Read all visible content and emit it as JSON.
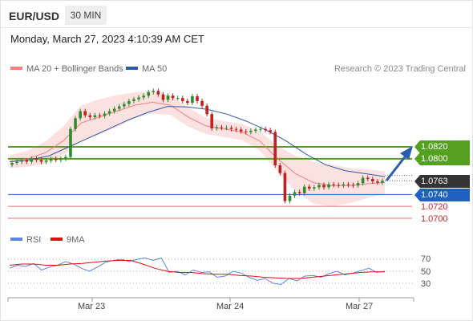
{
  "header": {
    "pair": "EUR/USD",
    "timeframe": "30 MIN",
    "datetime": "Monday, March 27, 2023 4:10:39 AM CET"
  },
  "legend_main": [
    {
      "label": "MA 20 + Bollinger Bands",
      "color": "#f08080"
    },
    {
      "label": "MA 50",
      "color": "#2b5ba8"
    }
  ],
  "copyright": "Research © 2023 Trading Central",
  "legend_rsi": [
    {
      "label": "RSI",
      "color": "#5b86e5"
    },
    {
      "label": "9MA",
      "color": "#dd1111"
    }
  ],
  "colors": {
    "up": "#2e8b2e",
    "down": "#c02020",
    "resistance": "#5aa020",
    "support": "#2060c0",
    "weak": "#e07070",
    "arrow": "#2a5db0",
    "bands": "#fbd7d7"
  },
  "levels": {
    "r2": {
      "label": "1.0820",
      "value": 1.082
    },
    "r1": {
      "label": "1.0800",
      "value": 1.08
    },
    "current": {
      "label": "1.0763",
      "value": 1.0763
    },
    "s1": {
      "label": "1.0740",
      "value": 1.074
    },
    "s2": {
      "label": "1.0720",
      "value": 1.072
    },
    "s3": {
      "label": "1.0700",
      "value": 1.07
    }
  },
  "rsi_levels": [
    {
      "label": "70",
      "value": 70
    },
    {
      "label": "50",
      "value": 50
    },
    {
      "label": "30",
      "value": 30
    }
  ],
  "x_labels": [
    "Mar 23",
    "Mar 24",
    "Mar 27"
  ],
  "chart_data": {
    "type": "line",
    "title": "EUR/USD 30 MIN",
    "x": [
      "Mar 23",
      "Mar 24",
      "Mar 27"
    ],
    "price_series": [
      {
        "name": "close",
        "values": [
          1.0793,
          1.0795,
          1.0797,
          1.0795,
          1.08,
          1.0798,
          1.0795,
          1.0797,
          1.08,
          1.0798,
          1.08,
          1.0803,
          1.085,
          1.0868,
          1.088,
          1.0873,
          1.087,
          1.0873,
          1.0872,
          1.0876,
          1.088,
          1.0884,
          1.0888,
          1.0892,
          1.0897,
          1.09,
          1.0903,
          1.0906,
          1.0912,
          1.0914,
          1.0908,
          1.0899,
          1.0906,
          1.0902,
          1.0902,
          1.0897,
          1.0894,
          1.0905,
          1.0897,
          1.0889,
          1.0875,
          1.0851,
          1.0853,
          1.0852,
          1.0852,
          1.085,
          1.0849,
          1.0846,
          1.0845,
          1.0847,
          1.0849,
          1.085,
          1.0848,
          1.0845,
          1.0789,
          1.0776,
          1.0729,
          1.0738,
          1.0744,
          1.0742,
          1.0753,
          1.075,
          1.0752,
          1.0756,
          1.0752,
          1.0757,
          1.0756,
          1.0755,
          1.0757,
          1.0756,
          1.0755,
          1.0759,
          1.0768,
          1.0766,
          1.0762,
          1.076,
          1.0763
        ]
      },
      {
        "name": "MA 20",
        "values": [
          1.0795,
          1.08,
          1.081,
          1.083,
          1.086,
          1.087,
          1.088,
          1.089,
          1.0895,
          1.089,
          1.087,
          1.0855,
          1.085,
          1.0845,
          1.083,
          1.08,
          1.0775,
          1.076,
          1.0755,
          1.0755,
          1.0758,
          1.076
        ]
      },
      {
        "name": "MA 50",
        "values": [
          1.0795,
          1.0798,
          1.0805,
          1.082,
          1.0835,
          1.085,
          1.0865,
          1.0878,
          1.0888,
          1.0887,
          1.0883,
          1.0875,
          1.0863,
          1.0848,
          1.083,
          1.0808,
          1.079,
          1.078,
          1.0775,
          1.077
        ]
      }
    ],
    "support_resistance": [
      1.082,
      1.08,
      1.074,
      1.072,
      1.07
    ],
    "current_price": 1.0763,
    "rsi_series": [
      {
        "name": "RSI",
        "values": [
          55,
          60,
          58,
          63,
          52,
          57,
          60,
          66,
          62,
          55,
          50,
          57,
          65,
          68,
          70,
          66,
          70,
          72,
          68,
          72,
          48,
          50,
          44,
          52,
          48,
          49,
          40,
          42,
          50,
          47,
          40,
          35,
          38,
          30,
          28,
          38,
          34,
          42,
          43,
          40,
          46,
          50,
          44,
          47,
          51,
          55,
          48,
          50
        ]
      },
      {
        "name": "9MA",
        "values": [
          60,
          62,
          62,
          60,
          60,
          62,
          63,
          65,
          67,
          68,
          68,
          62,
          55,
          50,
          48,
          48,
          46,
          45,
          45,
          43,
          42,
          40,
          39,
          38,
          38,
          40,
          42,
          44,
          46,
          48,
          49,
          49
        ]
      }
    ],
    "rsi_ylim": [
      10,
      90
    ],
    "grid": false,
    "legend": "top-left"
  }
}
